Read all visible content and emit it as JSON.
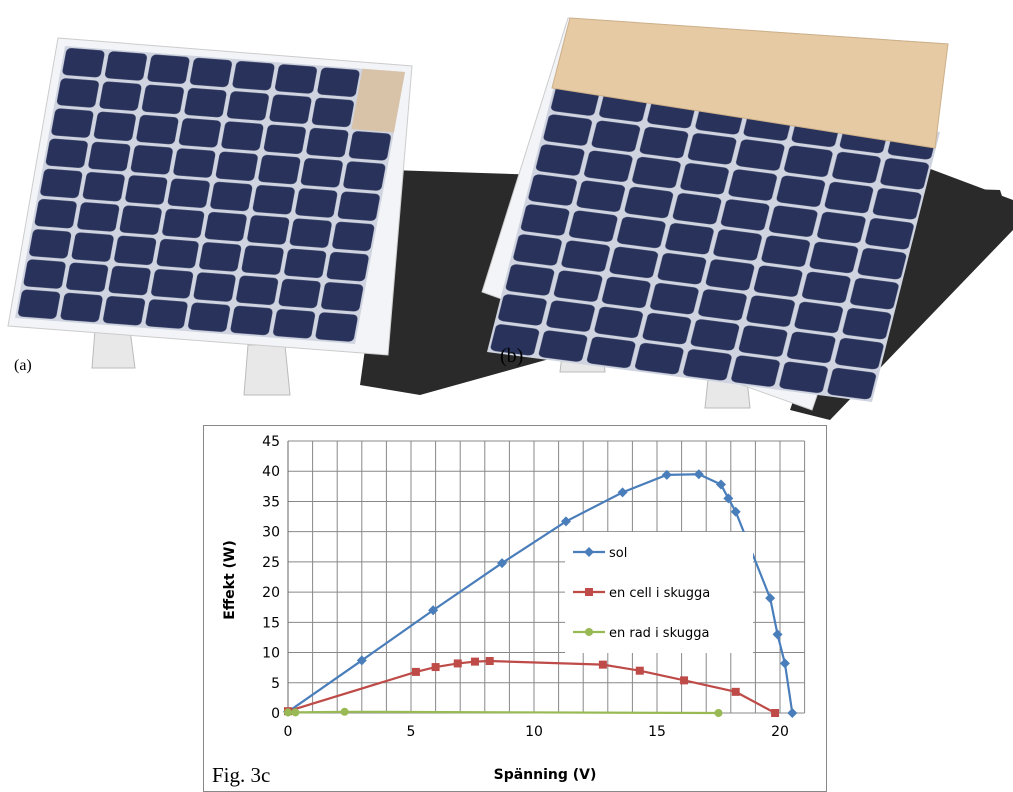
{
  "figure": {
    "photo_labels": [
      "(a)",
      "(b)"
    ],
    "caption": "Fig. 3c"
  },
  "chart_data": {
    "type": "line",
    "x_label": "Spänning (V)",
    "y_label": "Effekt (W)",
    "xlim": [
      0,
      21
    ],
    "xticks": [
      0,
      5,
      10,
      15,
      20
    ],
    "xgrid": [
      0,
      1,
      2,
      3,
      4,
      5,
      6,
      7,
      8,
      9,
      10,
      11,
      12,
      13,
      14,
      15,
      16,
      17,
      18,
      19,
      20,
      21
    ],
    "ylim": [
      0,
      45
    ],
    "yticks": [
      0,
      5,
      10,
      15,
      20,
      25,
      30,
      35,
      40,
      45
    ],
    "grid": true,
    "legend_position": "center-right",
    "series": [
      {
        "name": "sol",
        "color": "#4a7ebb",
        "marker": "diamond",
        "x": [
          0,
          3,
          5.9,
          8.7,
          11.3,
          13.6,
          15.4,
          16.7,
          17.6,
          17.9,
          18.2,
          19.6,
          19.9,
          20.2,
          20.5
        ],
        "values": [
          0.2,
          8.7,
          17,
          24.8,
          31.7,
          36.5,
          39.4,
          39.5,
          37.8,
          35.5,
          33.3,
          19,
          13,
          8.2,
          0
        ]
      },
      {
        "name": "en cell i skugga",
        "color": "#be4b48",
        "marker": "square",
        "x": [
          0,
          5.2,
          6,
          6.9,
          7.6,
          8.2,
          12.8,
          14.3,
          16.1,
          18.2,
          19.8
        ],
        "values": [
          0.3,
          6.8,
          7.6,
          8.2,
          8.5,
          8.6,
          8,
          7,
          5.4,
          3.5,
          0
        ]
      },
      {
        "name": "en rad i skugga",
        "color": "#98b954",
        "marker": "circle",
        "x": [
          0,
          0.3,
          2.3,
          17.5
        ],
        "values": [
          0.1,
          0.1,
          0.2,
          0
        ]
      }
    ]
  }
}
